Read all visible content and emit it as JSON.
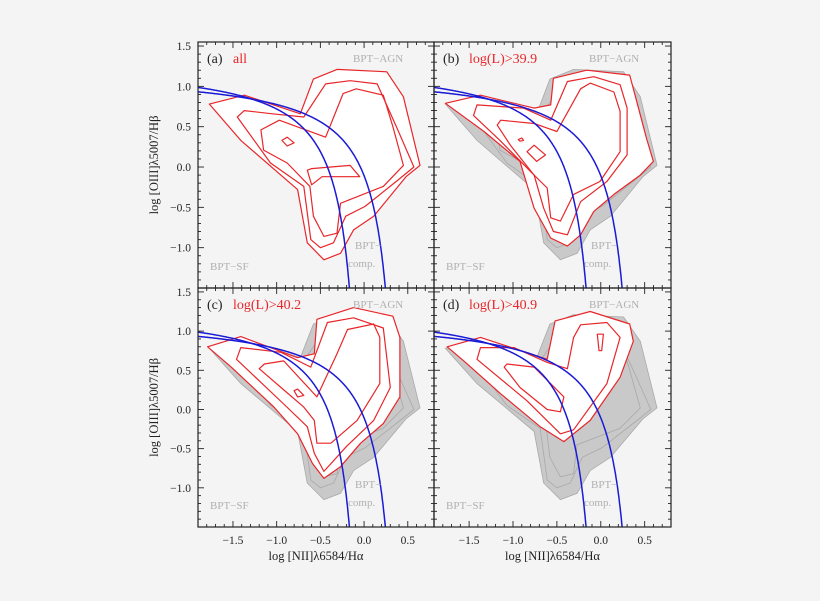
{
  "chart_data": {
    "type": "contour",
    "xlabel": "log [NII]λ6584/Hα",
    "ylabel": "log [OIII]λ5007/Hβ",
    "xlim": [
      -1.9,
      0.8
    ],
    "ylim": [
      -1.5,
      1.55
    ],
    "xticks": [
      -1.5,
      -1.0,
      -0.5,
      0.0,
      0.5
    ],
    "xtick_labels": [
      "−1.5",
      "−1.0",
      "−0.5",
      "0.0",
      "0.5"
    ],
    "yticks": [
      -1.0,
      -0.5,
      0.0,
      0.5,
      1.0,
      1.5
    ],
    "ytick_labels": [
      "−1.0",
      "−0.5",
      "0.0",
      "0.5",
      "1.0",
      "1.5"
    ],
    "region_labels": {
      "agn": "BPT−AGN",
      "sf": "BPT−SF",
      "comp_1": "BPT−",
      "comp_2": "comp."
    },
    "colors": {
      "contour": "#e8262a",
      "demarcation": "#1a1ad6",
      "shaded": "#c9c9c9",
      "shaded_line": "#a9a9a9",
      "region_label": "#b0b0b0"
    },
    "demarcation_curves": [
      {
        "form": "y = 0.61/(x - 0.05) + 1.3",
        "a": 0.61,
        "b": 0.05,
        "c": 1.3
      },
      {
        "form": "y = 0.61/(x - 0.47) + 1.19",
        "a": 0.61,
        "b": 0.47,
        "c": 1.19
      }
    ],
    "panels": [
      {
        "tag": "(a)",
        "label": "all",
        "shaded_reference": false,
        "contours": [
          [
            [
              -1.77,
              0.78
            ],
            [
              -1.37,
              0.89
            ],
            [
              -0.73,
              0.66
            ],
            [
              -0.58,
              1.09
            ],
            [
              -0.31,
              1.21
            ],
            [
              0.26,
              1.18
            ],
            [
              0.45,
              0.87
            ],
            [
              0.64,
              0.02
            ],
            [
              0.48,
              -0.12
            ],
            [
              0.11,
              -0.61
            ],
            [
              -0.12,
              -0.78
            ],
            [
              -0.27,
              -1.07
            ],
            [
              -0.46,
              -1.15
            ],
            [
              -0.65,
              -0.94
            ],
            [
              -0.76,
              -0.28
            ],
            [
              -1.41,
              0.33
            ]
          ],
          [
            [
              -1.45,
              0.62
            ],
            [
              -1.37,
              0.7
            ],
            [
              -1.05,
              0.66
            ],
            [
              -0.69,
              0.62
            ],
            [
              -0.44,
              1.03
            ],
            [
              -0.16,
              1.07
            ],
            [
              0.15,
              1.03
            ],
            [
              0.37,
              0.5
            ],
            [
              0.57,
              0.0
            ],
            [
              0.39,
              -0.16
            ],
            [
              0.01,
              -0.49
            ],
            [
              -0.21,
              -0.61
            ],
            [
              -0.35,
              -0.94
            ],
            [
              -0.5,
              -1.0
            ],
            [
              -0.61,
              -0.9
            ],
            [
              -0.69,
              -0.24
            ],
            [
              -1.07,
              0.05
            ]
          ],
          [
            [
              -1.18,
              0.46
            ],
            [
              -0.97,
              0.58
            ],
            [
              -0.44,
              0.37
            ],
            [
              -0.24,
              0.91
            ],
            [
              -0.09,
              0.97
            ],
            [
              0.22,
              0.89
            ],
            [
              0.33,
              0.5
            ],
            [
              0.45,
              0.02
            ],
            [
              0.22,
              -0.24
            ],
            [
              -0.27,
              -0.45
            ],
            [
              -0.31,
              -0.82
            ],
            [
              -0.46,
              -0.86
            ],
            [
              -0.58,
              -0.61
            ],
            [
              -0.62,
              -0.24
            ],
            [
              -0.88,
              0.05
            ],
            [
              -1.15,
              0.21
            ]
          ],
          [
            [
              -0.94,
              0.33
            ],
            [
              -0.88,
              0.37
            ],
            [
              -0.8,
              0.3
            ],
            [
              -0.88,
              0.26
            ]
          ],
          [
            [
              -0.65,
              -0.04
            ],
            [
              -0.6,
              -0.02
            ],
            [
              -0.16,
              0.02
            ],
            [
              -0.05,
              -0.12
            ],
            [
              -0.48,
              -0.12
            ],
            [
              -0.6,
              -0.22
            ]
          ]
        ]
      },
      {
        "tag": "(b)",
        "label": "log(L)>39.9",
        "shaded_reference": true,
        "contours": [
          [
            [
              -1.77,
              0.79
            ],
            [
              -1.37,
              0.89
            ],
            [
              -0.76,
              0.73
            ],
            [
              -0.57,
              0.77
            ],
            [
              -0.54,
              1.1
            ],
            [
              -0.16,
              1.2
            ],
            [
              0.33,
              1.14
            ],
            [
              0.41,
              0.81
            ],
            [
              0.52,
              0.36
            ],
            [
              0.6,
              0.07
            ],
            [
              0.45,
              -0.1
            ],
            [
              0.15,
              -0.34
            ],
            [
              -0.08,
              -0.55
            ],
            [
              -0.23,
              -0.84
            ],
            [
              -0.38,
              -0.98
            ],
            [
              -0.57,
              -0.88
            ],
            [
              -0.76,
              -0.51
            ],
            [
              -0.92,
              0.07
            ],
            [
              -1.33,
              0.44
            ]
          ],
          [
            [
              -1.45,
              0.64
            ],
            [
              -1.41,
              0.77
            ],
            [
              -0.88,
              0.73
            ],
            [
              -0.57,
              0.58
            ],
            [
              -0.38,
              1.06
            ],
            [
              -0.08,
              1.12
            ],
            [
              0.22,
              1.02
            ],
            [
              0.3,
              0.73
            ],
            [
              0.3,
              0.15
            ],
            [
              0.07,
              -0.18
            ],
            [
              -0.23,
              -0.43
            ],
            [
              -0.38,
              -0.84
            ],
            [
              -0.54,
              -0.8
            ],
            [
              -0.65,
              -0.51
            ],
            [
              -0.76,
              -0.1
            ],
            [
              -1.14,
              0.32
            ]
          ],
          [
            [
              -1.18,
              0.52
            ],
            [
              -1.14,
              0.58
            ],
            [
              -0.76,
              0.54
            ],
            [
              -0.5,
              0.44
            ],
            [
              -0.23,
              0.97
            ],
            [
              -0.12,
              1.04
            ],
            [
              0.15,
              0.93
            ],
            [
              0.22,
              0.69
            ],
            [
              0.22,
              0.19
            ],
            [
              -0.01,
              -0.18
            ],
            [
              -0.31,
              -0.34
            ],
            [
              -0.46,
              -0.67
            ],
            [
              -0.57,
              -0.63
            ],
            [
              -0.61,
              -0.26
            ],
            [
              -0.76,
              -0.1
            ],
            [
              -1.03,
              0.27
            ]
          ],
          [
            [
              -0.84,
              0.19
            ],
            [
              -0.76,
              0.27
            ],
            [
              -0.63,
              0.15
            ],
            [
              -0.73,
              0.07
            ]
          ],
          [
            [
              -0.94,
              0.34
            ],
            [
              -0.9,
              0.36
            ],
            [
              -0.88,
              0.33
            ],
            [
              -0.92,
              0.32
            ]
          ]
        ]
      },
      {
        "tag": "(c)",
        "label": "log(L)>40.2",
        "shaded_reference": true,
        "contours": [
          [
            [
              -1.79,
              0.8
            ],
            [
              -1.41,
              0.93
            ],
            [
              -0.76,
              0.66
            ],
            [
              -0.57,
              0.71
            ],
            [
              -0.54,
              1.15
            ],
            [
              -0.12,
              1.3
            ],
            [
              0.33,
              1.19
            ],
            [
              0.41,
              0.92
            ],
            [
              0.41,
              0.16
            ],
            [
              0.22,
              -0.18
            ],
            [
              -0.04,
              -0.43
            ],
            [
              -0.27,
              -0.73
            ],
            [
              -0.46,
              -0.88
            ],
            [
              -0.59,
              -0.69
            ],
            [
              -0.76,
              -0.31
            ],
            [
              -1.03,
              0.03
            ],
            [
              -1.52,
              0.54
            ]
          ],
          [
            [
              -1.46,
              0.64
            ],
            [
              -1.41,
              0.79
            ],
            [
              -0.95,
              0.73
            ],
            [
              -0.61,
              0.54
            ],
            [
              -0.42,
              1.11
            ],
            [
              -0.12,
              1.17
            ],
            [
              0.22,
              1.04
            ],
            [
              0.3,
              0.28
            ],
            [
              0.11,
              -0.14
            ],
            [
              -0.2,
              -0.47
            ],
            [
              -0.46,
              -0.79
            ],
            [
              -0.57,
              -0.56
            ],
            [
              -0.65,
              -0.22
            ],
            [
              -0.92,
              0.07
            ]
          ],
          [
            [
              -1.2,
              0.52
            ],
            [
              -1.14,
              0.58
            ],
            [
              -0.92,
              0.62
            ],
            [
              -0.54,
              0.16
            ],
            [
              -0.31,
              0.71
            ],
            [
              -0.19,
              1.02
            ],
            [
              0.11,
              1.09
            ],
            [
              0.18,
              0.92
            ],
            [
              0.18,
              0.33
            ],
            [
              -0.08,
              -0.14
            ],
            [
              -0.38,
              -0.43
            ],
            [
              -0.54,
              -0.43
            ],
            [
              -0.57,
              -0.14
            ],
            [
              -0.69,
              0.03
            ],
            [
              -0.95,
              0.28
            ]
          ],
          [
            [
              -0.8,
              0.24
            ],
            [
              -0.76,
              0.26
            ],
            [
              -0.69,
              0.18
            ],
            [
              -0.76,
              0.16
            ]
          ]
        ]
      },
      {
        "tag": "(d)",
        "label": "log(L)>40.9",
        "shaded_reference": true,
        "contours": [
          [
            [
              -1.75,
              0.8
            ],
            [
              -1.37,
              0.92
            ],
            [
              -0.61,
              0.64
            ],
            [
              -0.52,
              1.13
            ],
            [
              -0.12,
              1.25
            ],
            [
              0.33,
              1.09
            ],
            [
              0.37,
              0.87
            ],
            [
              0.22,
              0.41
            ],
            [
              -0.12,
              -0.14
            ],
            [
              -0.42,
              -0.41
            ],
            [
              -0.69,
              -0.22
            ],
            [
              -1.14,
              0.2
            ],
            [
              -1.56,
              0.62
            ]
          ],
          [
            [
              -1.41,
              0.64
            ],
            [
              -1.37,
              0.79
            ],
            [
              -0.99,
              0.79
            ],
            [
              -0.61,
              0.6
            ],
            [
              -0.38,
              0.52
            ],
            [
              -0.31,
              0.92
            ],
            [
              -0.23,
              1.08
            ],
            [
              0.07,
              1.11
            ],
            [
              0.22,
              0.92
            ],
            [
              0.07,
              0.33
            ],
            [
              -0.31,
              -0.26
            ],
            [
              -0.46,
              -0.31
            ],
            [
              -0.84,
              0.11
            ]
          ],
          [
            [
              -1.1,
              0.54
            ],
            [
              -1.07,
              0.58
            ],
            [
              -0.76,
              0.54
            ],
            [
              -0.42,
              0.16
            ],
            [
              -0.46,
              -0.03
            ],
            [
              -0.61,
              0.0
            ],
            [
              -0.92,
              0.28
            ]
          ],
          [
            [
              -0.04,
              0.96
            ],
            [
              0.03,
              0.96
            ],
            [
              0.01,
              0.75
            ],
            [
              -0.02,
              0.75
            ]
          ]
        ]
      }
    ]
  }
}
